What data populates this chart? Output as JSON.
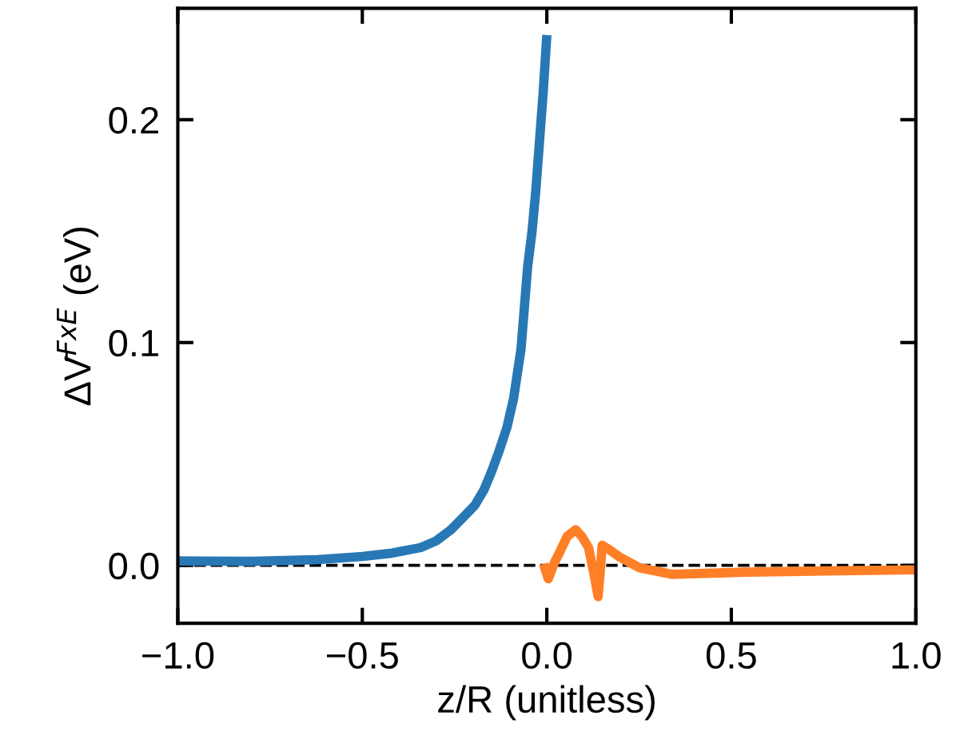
{
  "chart_data": {
    "type": "line",
    "xlabel": "z/R (unitless)",
    "ylabel": "ΔV̄$^{FxE}$ (eV)",
    "xlim": [
      -1.0,
      1.0
    ],
    "xticks": [
      {
        "value": -1,
        "label": "−1.0"
      },
      -0.5,
      {
        "value": 0,
        "label": "0.0"
      },
      0.5,
      {
        "value": 1,
        "label": "1.0"
      }
    ],
    "ylim": [
      -0.026,
      0.25
    ],
    "yticks": [
      {
        "value": 0,
        "label": "0.0"
      },
      0.1,
      0.2
    ],
    "grid": false,
    "legend": false,
    "line_style": "solid",
    "marker": "none",
    "series": [
      {
        "color": "#2878b5",
        "x": [
          -1.0,
          -0.8,
          -0.63,
          -0.5,
          -0.42,
          -0.342,
          -0.3,
          -0.26,
          -0.23,
          -0.195,
          -0.17,
          -0.15,
          -0.13,
          -0.108,
          -0.09,
          -0.07,
          -0.052,
          -0.04,
          -0.03,
          -0.02,
          -0.01,
          0.0
        ],
        "values": [
          0.002,
          0.0018,
          0.0025,
          0.004,
          0.0055,
          0.008,
          0.011,
          0.016,
          0.021,
          0.027,
          0.034,
          0.042,
          0.051,
          0.062,
          0.075,
          0.097,
          0.134,
          0.15,
          0.168,
          0.19,
          0.212,
          0.238
        ]
      },
      {
        "color": "#ff7f27",
        "x": [
          -0.009,
          0.004,
          0.02,
          0.035,
          0.055,
          0.078,
          0.095,
          0.113,
          0.128,
          0.139,
          0.145,
          0.15,
          0.17,
          0.195,
          0.25,
          0.338,
          0.54,
          0.75,
          1.0
        ],
        "values": [
          0.0007,
          -0.006,
          0.001,
          0.006,
          0.013,
          0.016,
          0.013,
          0.008,
          -0.004,
          -0.014,
          -0.002,
          0.009,
          0.007,
          0.004,
          -0.001,
          -0.004,
          -0.003,
          -0.0025,
          -0.002
        ]
      }
    ],
    "ref_lines": [
      {
        "axis": "y",
        "value": 0,
        "color": "#000000",
        "line_style": "dashed"
      }
    ]
  }
}
